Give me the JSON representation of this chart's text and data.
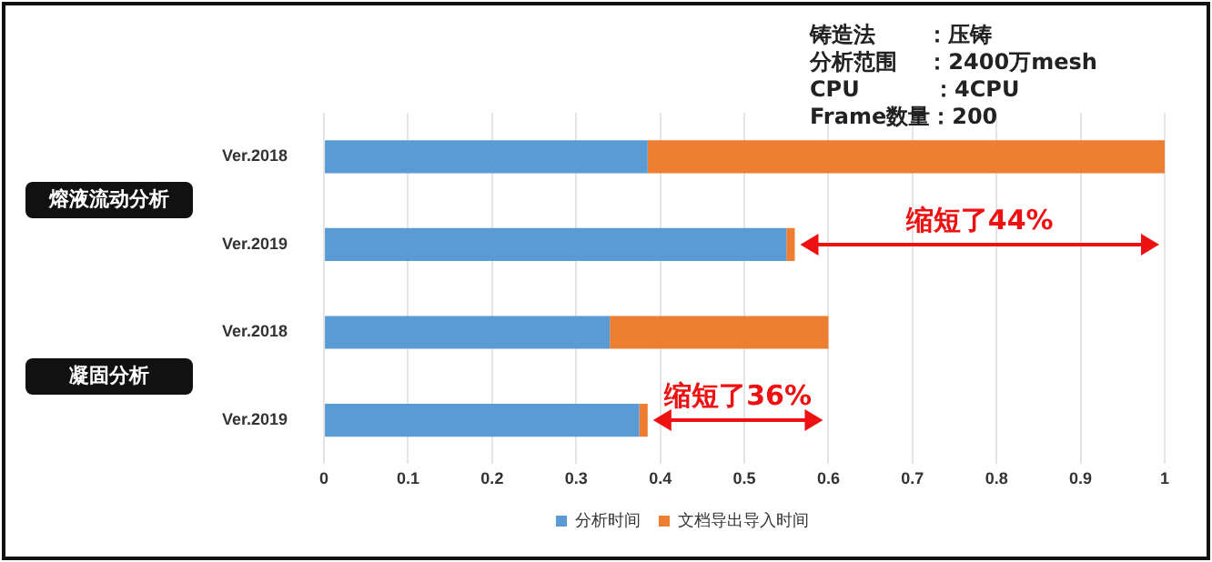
{
  "chart_data": {
    "type": "bar",
    "orientation": "horizontal",
    "stacked": true,
    "categories": [
      "Ver.2018",
      "Ver.2019",
      "Ver.2018",
      "Ver.2019"
    ],
    "series": [
      {
        "name": "分析时间",
        "color": "#5b9bd5",
        "values": [
          0.385,
          0.55,
          0.34,
          0.375
        ]
      },
      {
        "name": "文档导出导入时间",
        "color": "#ed7d31",
        "values": [
          0.615,
          0.01,
          0.26,
          0.01
        ]
      }
    ],
    "xlim": [
      0,
      1
    ],
    "xticks": [
      0,
      0.1,
      0.2,
      0.3,
      0.4,
      0.5,
      0.6,
      0.7,
      0.8,
      0.9,
      1
    ],
    "grid": "x",
    "legend": "bottom",
    "annotations": [
      "铸造法　　 ：压铸",
      "分析范围　 ：2400万mesh",
      "CPU　　　 ：4CPU",
      "Frame数量：200",
      "熔液流动分析",
      "凝固分析",
      "缩短了44%",
      "缩短了36%"
    ]
  }
}
